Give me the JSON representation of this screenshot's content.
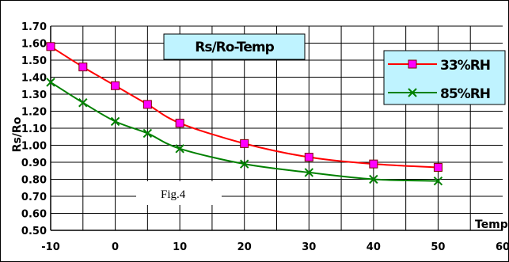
{
  "chart_data": {
    "type": "line",
    "title": "Rs/Ro-Temp",
    "ylabel": "Rs/Ro",
    "xlabel": "Temp",
    "annotation": "Fig.4",
    "x_ticks": [
      "-10",
      "0",
      "10",
      "20",
      "30",
      "40",
      "50",
      "60"
    ],
    "y_ticks": [
      "0.50",
      "0.60",
      "0.70",
      "0.80",
      "0.90",
      "1.00",
      "1.10",
      "1.20",
      "1.30",
      "1.40",
      "1.50",
      "1.60",
      "1.70"
    ],
    "xlim": [
      -10,
      60
    ],
    "ylim": [
      0.5,
      1.7
    ],
    "grid": true,
    "legend_position": "top-right",
    "series": [
      {
        "name": "33%RH",
        "color": "#ff0000",
        "marker": "square",
        "marker_color": "#ff00ff",
        "x": [
          -10,
          -5,
          0,
          5,
          10,
          20,
          30,
          40,
          50
        ],
        "y": [
          1.58,
          1.46,
          1.35,
          1.24,
          1.13,
          1.01,
          0.93,
          0.89,
          0.87
        ]
      },
      {
        "name": "85%RH",
        "color": "#008000",
        "marker": "x",
        "marker_color": "#008000",
        "x": [
          -10,
          -5,
          0,
          5,
          10,
          20,
          30,
          40,
          50
        ],
        "y": [
          1.37,
          1.25,
          1.14,
          1.07,
          0.98,
          0.89,
          0.84,
          0.8,
          0.79
        ]
      }
    ]
  }
}
